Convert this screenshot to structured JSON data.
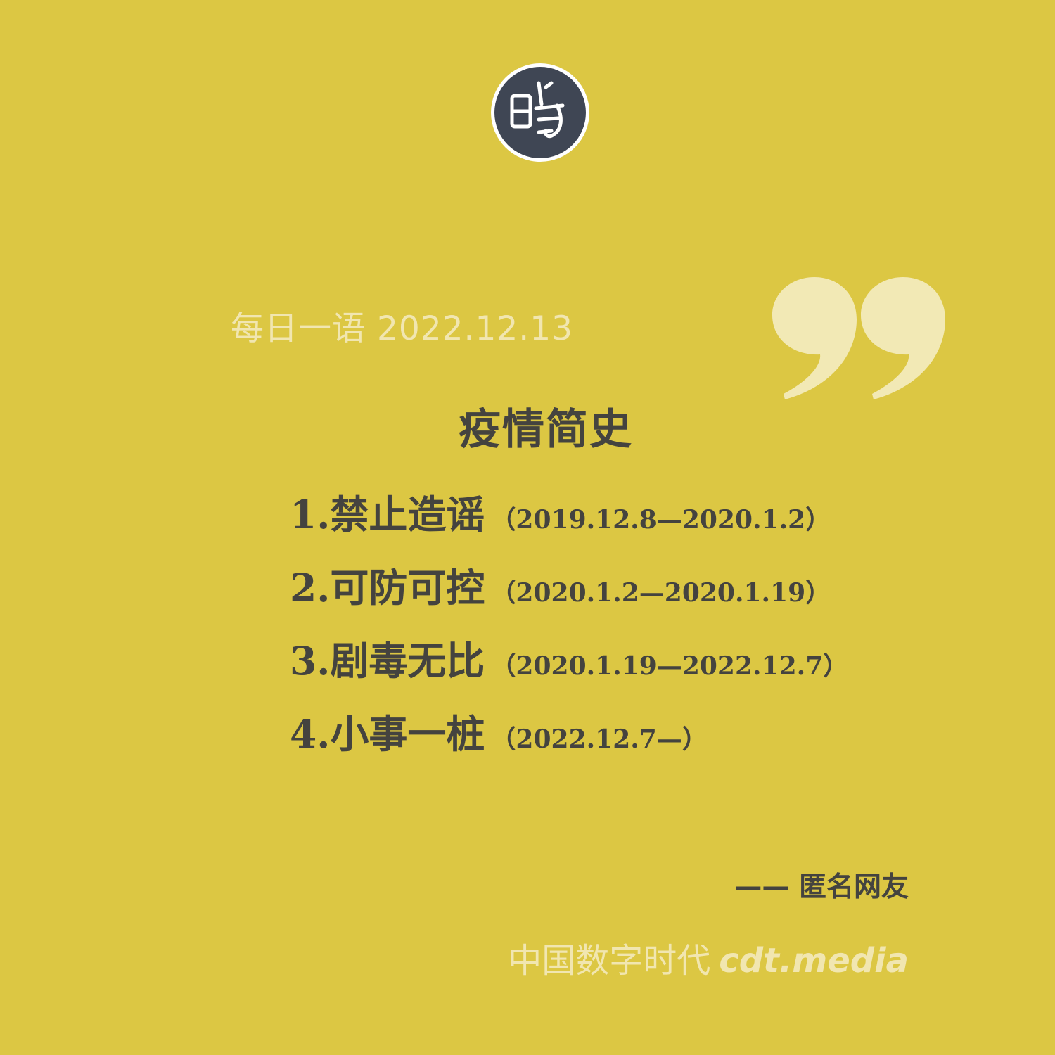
{
  "logo": {
    "icon": "cdt-seal-logo-icon",
    "bg_color": "#3f4654",
    "fg_color": "#ffffff"
  },
  "quote_mark": {
    "icon": "closing-quote-icon",
    "color": "#f2e9b5"
  },
  "daily": {
    "label": "每日一语 2022.12.13"
  },
  "title": "疫情简史",
  "items": [
    {
      "name": "1.禁止造谣",
      "range": "（2019.12.8—2020.1.2）"
    },
    {
      "name": "2.可防可控",
      "range": "（2020.1.2—2020.1.19）"
    },
    {
      "name": "3.剧毒无比",
      "range": "（2020.1.19—2022.12.7）"
    },
    {
      "name": "4.小事一桩",
      "range": "（2022.12.7—）"
    }
  ],
  "attribution": "—— 匿名网友",
  "footer": {
    "brand": "中国数字时代",
    "site": "cdt.media"
  },
  "colors": {
    "background": "#dcc743",
    "text_dark": "#44433f",
    "text_light": "#f1e6b0"
  }
}
